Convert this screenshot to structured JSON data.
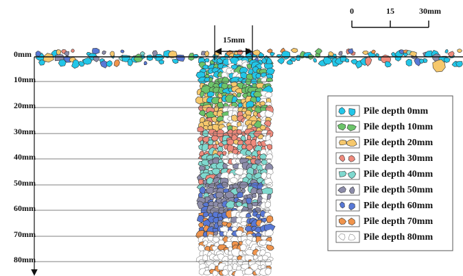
{
  "scale_bar": {
    "labels": [
      "0",
      "15",
      "30mm"
    ]
  },
  "dimension": "15mm",
  "depth_labels": [
    "0mm",
    "10mm",
    "20mm",
    "30mm",
    "40mm",
    "50mm",
    "60mm",
    "70mm",
    "80mm"
  ],
  "legend": [
    {
      "label": "Pile depth 0mm",
      "color": "#22c6e8"
    },
    {
      "label": "Pile depth 10mm",
      "color": "#6cc46a"
    },
    {
      "label": "Pile depth 20mm",
      "color": "#f6c86c"
    },
    {
      "label": "Pile depth 30mm",
      "color": "#ef8a7c"
    },
    {
      "label": "Pile depth 40mm",
      "color": "#7fd9cf"
    },
    {
      "label": "Pile depth 50mm",
      "color": "#8c8caa"
    },
    {
      "label": "Pile depth 60mm",
      "color": "#5878d6"
    },
    {
      "label": "Pile depth 70mm",
      "color": "#f0944c"
    },
    {
      "label": "Pile depth 80mm",
      "color": "#ffffff"
    }
  ]
}
